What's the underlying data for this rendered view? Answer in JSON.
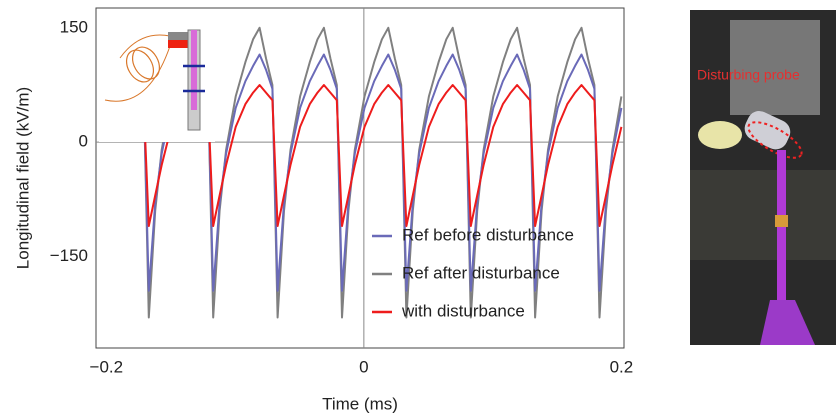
{
  "chart_data": {
    "type": "line",
    "xlabel": "Time (ms)",
    "ylabel": "Longitudinal field (kV/m)",
    "xlim": [
      -0.208,
      0.202
    ],
    "ylim": [
      -270,
      176
    ],
    "xticks": [
      {
        "value": -0.2,
        "label": "−0.2"
      },
      0,
      0.2
    ],
    "yticks": [
      {
        "value": -150,
        "label": "−150"
      },
      0,
      150
    ],
    "zero_lines": true,
    "x": [
      -0.1995,
      -0.192,
      -0.186,
      -0.181,
      -0.176,
      -0.171,
      -0.167,
      -0.162,
      -0.157,
      -0.1495,
      -0.142,
      -0.136,
      -0.131,
      -0.126,
      -0.121,
      -0.117,
      -0.112,
      -0.107,
      -0.0995,
      -0.092,
      -0.086,
      -0.081,
      -0.076,
      -0.071,
      -0.067,
      -0.062,
      -0.057,
      -0.0495,
      -0.042,
      -0.036,
      -0.031,
      -0.026,
      -0.021,
      -0.017,
      -0.012,
      -0.007,
      0.0005,
      0.008,
      0.014,
      0.019,
      0.024,
      0.029,
      0.033,
      0.038,
      0.043,
      0.0505,
      0.058,
      0.064,
      0.069,
      0.074,
      0.079,
      0.083,
      0.088,
      0.093,
      0.1005,
      0.108,
      0.114,
      0.119,
      0.124,
      0.129,
      0.133,
      0.138,
      0.143,
      0.1505,
      0.158,
      0.164,
      0.169,
      0.174,
      0.179,
      0.183,
      0.188,
      0.193,
      0.2
    ],
    "series": [
      {
        "name": "Ref after disturbance",
        "color": "#808080",
        "values": [
          60,
          105,
          135,
          150,
          110,
          75,
          -230,
          -90,
          -10,
          60,
          105,
          135,
          150,
          110,
          75,
          -230,
          -90,
          -10,
          60,
          105,
          135,
          150,
          110,
          75,
          -230,
          -90,
          -10,
          60,
          105,
          135,
          150,
          110,
          75,
          -230,
          -90,
          -10,
          60,
          105,
          135,
          150,
          110,
          75,
          -230,
          -90,
          -10,
          60,
          105,
          135,
          150,
          110,
          75,
          -230,
          -90,
          -10,
          60,
          105,
          135,
          150,
          110,
          75,
          -230,
          -90,
          -10,
          60,
          105,
          135,
          150,
          110,
          75,
          -230,
          -90,
          -10,
          60
        ]
      },
      {
        "name": "Ref before disturbance",
        "color": "#6a6ab8",
        "values": [
          45,
          80,
          100,
          115,
          95,
          70,
          -195,
          -80,
          -15,
          45,
          80,
          100,
          115,
          95,
          70,
          -195,
          -80,
          -15,
          45,
          80,
          100,
          115,
          95,
          70,
          -195,
          -80,
          -15,
          45,
          80,
          100,
          115,
          95,
          70,
          -195,
          -80,
          -15,
          45,
          80,
          100,
          115,
          95,
          70,
          -195,
          -80,
          -15,
          45,
          80,
          100,
          115,
          95,
          70,
          -195,
          -80,
          -15,
          45,
          80,
          100,
          115,
          95,
          70,
          -195,
          -80,
          -15,
          45,
          80,
          100,
          115,
          95,
          70,
          -195,
          -80,
          -15,
          45
        ]
      },
      {
        "name": "with disturbance",
        "color": "#ee1c1c",
        "values": [
          20,
          50,
          65,
          75,
          65,
          55,
          -110,
          -70,
          -30,
          20,
          50,
          65,
          75,
          65,
          55,
          -110,
          -70,
          -30,
          20,
          50,
          65,
          75,
          65,
          55,
          -110,
          -70,
          -30,
          20,
          50,
          65,
          75,
          65,
          55,
          -110,
          -70,
          -30,
          20,
          50,
          65,
          75,
          65,
          55,
          -110,
          -70,
          -30,
          20,
          50,
          65,
          75,
          65,
          55,
          -110,
          -70,
          -30,
          20,
          50,
          65,
          75,
          65,
          55,
          -110,
          -70,
          -30,
          20,
          50,
          65,
          75,
          65,
          55,
          -110,
          -70,
          -30,
          20
        ]
      }
    ],
    "legend_order": [
      1,
      0,
      2
    ],
    "annotation": "Disturbing probe"
  }
}
